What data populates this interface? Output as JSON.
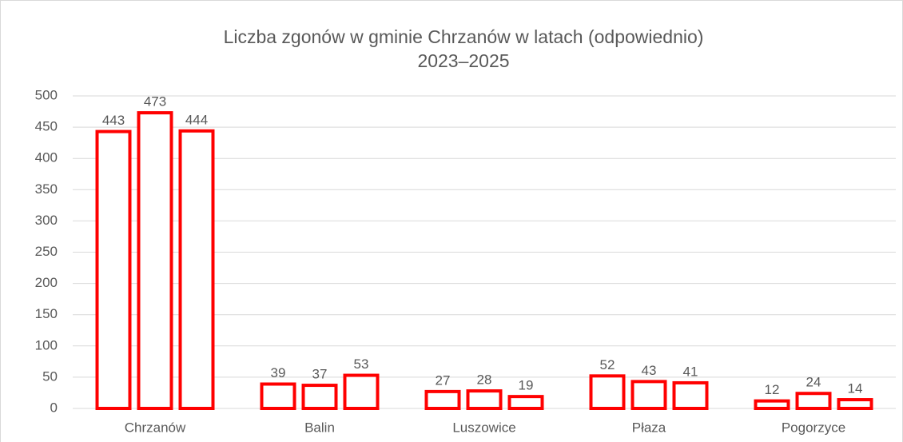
{
  "chart_data": {
    "type": "bar",
    "title": [
      "Liczba zgonów w gminie Chrzanów w latach (odpowiednio)",
      "2023–2025"
    ],
    "categories": [
      "Chrzanów",
      "Balin",
      "Luszowice",
      "Płaza",
      "Pogorzyce"
    ],
    "series": [
      {
        "color": "#ff0000",
        "values": [
          443,
          39,
          27,
          52,
          12
        ]
      },
      {
        "color": "#ff0000",
        "values": [
          473,
          37,
          28,
          43,
          24
        ]
      },
      {
        "color": "#ff0000",
        "values": [
          444,
          53,
          19,
          41,
          14
        ]
      }
    ],
    "ylim": [
      0,
      500
    ],
    "yticks": [
      0,
      50,
      100,
      150,
      200,
      250,
      300,
      350,
      400,
      450,
      500
    ],
    "grid": true
  }
}
